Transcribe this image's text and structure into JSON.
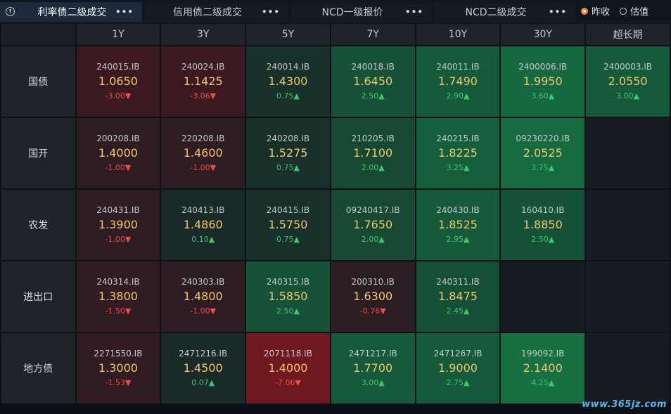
{
  "tabs": [
    {
      "label": "利率债二级成交",
      "active": true,
      "has_info": true
    },
    {
      "label": "信用债二级成交",
      "active": false,
      "has_info": false
    },
    {
      "label": "NCD一级报价",
      "active": false,
      "has_info": false
    },
    {
      "label": "NCD二级成交",
      "active": false,
      "has_info": false
    }
  ],
  "menu_dots": "•••",
  "radio": {
    "prev_close": "昨收",
    "valuation": "估值",
    "selected": "prev_close"
  },
  "columns": [
    "1Y",
    "3Y",
    "5Y",
    "7Y",
    "10Y",
    "30Y",
    "超长期"
  ],
  "rows": [
    {
      "name": "国债",
      "cells": [
        {
          "code": "240015.IB",
          "value": "1.0650",
          "change": "-3.00▼",
          "dir": "down",
          "bg": "#3a1a20"
        },
        {
          "code": "240024.IB",
          "value": "1.1425",
          "change": "-3.06▼",
          "dir": "down",
          "bg": "#3a1a20"
        },
        {
          "code": "240014.IB",
          "value": "1.4300",
          "change": "0.75▲",
          "dir": "up",
          "bg": "#17302a"
        },
        {
          "code": "240018.IB",
          "value": "1.6450",
          "change": "2.50▲",
          "dir": "up",
          "bg": "#155237"
        },
        {
          "code": "240011.IB",
          "value": "1.7490",
          "change": "2.90▲",
          "dir": "up",
          "bg": "#155a3a"
        },
        {
          "code": "2400006.IB",
          "value": "1.9950",
          "change": "3.60▲",
          "dir": "up",
          "bg": "#15683f"
        },
        {
          "code": "2400003.IB",
          "value": "2.0550",
          "change": "3.00▲",
          "dir": "up",
          "bg": "#155a3a"
        }
      ]
    },
    {
      "name": "国开",
      "cells": [
        {
          "code": "200208.IB",
          "value": "1.4000",
          "change": "-1.00▼",
          "dir": "down",
          "bg": "#2d1d23"
        },
        {
          "code": "220208.IB",
          "value": "1.4600",
          "change": "-1.00▼",
          "dir": "down",
          "bg": "#2d1d23"
        },
        {
          "code": "240208.IB",
          "value": "1.5275",
          "change": "0.75▲",
          "dir": "up",
          "bg": "#17302a"
        },
        {
          "code": "210205.IB",
          "value": "1.7100",
          "change": "2.00▲",
          "dir": "up",
          "bg": "#164832"
        },
        {
          "code": "240215.IB",
          "value": "1.8225",
          "change": "3.25▲",
          "dir": "up",
          "bg": "#155f3c"
        },
        {
          "code": "09230220.IB",
          "value": "2.0525",
          "change": "3.75▲",
          "dir": "up",
          "bg": "#156a40"
        },
        null
      ]
    },
    {
      "name": "农发",
      "cells": [
        {
          "code": "240431.IB",
          "value": "1.3900",
          "change": "-1.00▼",
          "dir": "down",
          "bg": "#2d1d23"
        },
        {
          "code": "240413.IB",
          "value": "1.4860",
          "change": "0.10▲",
          "dir": "up",
          "bg": "#1a2a28"
        },
        {
          "code": "240415.IB",
          "value": "1.5750",
          "change": "0.75▲",
          "dir": "up",
          "bg": "#17302a"
        },
        {
          "code": "09240417.IB",
          "value": "1.7650",
          "change": "2.00▲",
          "dir": "up",
          "bg": "#164832"
        },
        {
          "code": "240430.IB",
          "value": "1.8525",
          "change": "2.95▲",
          "dir": "up",
          "bg": "#155a3a"
        },
        {
          "code": "160410.IB",
          "value": "1.8850",
          "change": "2.50▲",
          "dir": "up",
          "bg": "#155237"
        },
        null
      ]
    },
    {
      "name": "进出口",
      "cells": [
        {
          "code": "240314.IB",
          "value": "1.3800",
          "change": "-1.50▼",
          "dir": "down",
          "bg": "#301c22"
        },
        {
          "code": "240303.IB",
          "value": "1.4800",
          "change": "-1.00▼",
          "dir": "down",
          "bg": "#2d1d23"
        },
        {
          "code": "240315.IB",
          "value": "1.5850",
          "change": "2.50▲",
          "dir": "up",
          "bg": "#155237"
        },
        {
          "code": "200310.IB",
          "value": "1.6300",
          "change": "-0.76▼",
          "dir": "down",
          "bg": "#2a1e24"
        },
        {
          "code": "240311.IB",
          "value": "1.8475",
          "change": "2.45▲",
          "dir": "up",
          "bg": "#155036"
        },
        null,
        null
      ]
    },
    {
      "name": "地方债",
      "cells": [
        {
          "code": "2271550.IB",
          "value": "1.3000",
          "change": "-1.53▼",
          "dir": "down",
          "bg": "#301c22"
        },
        {
          "code": "2471216.IB",
          "value": "1.4500",
          "change": "0.07▲",
          "dir": "up",
          "bg": "#1a2a28"
        },
        {
          "code": "2071118.IB",
          "value": "1.4000",
          "change": "-7.06▼",
          "dir": "down",
          "bg": "#6e1820"
        },
        {
          "code": "2471217.IB",
          "value": "1.7700",
          "change": "3.00▲",
          "dir": "up",
          "bg": "#155a3a"
        },
        {
          "code": "2471267.IB",
          "value": "1.9000",
          "change": "2.75▲",
          "dir": "up",
          "bg": "#155a3a"
        },
        {
          "code": "199092.IB",
          "value": "2.1400",
          "change": "4.25▲",
          "dir": "up",
          "bg": "#167042"
        },
        null
      ]
    }
  ],
  "empty_bg": "#161c22",
  "watermark": "www.365jz.com"
}
